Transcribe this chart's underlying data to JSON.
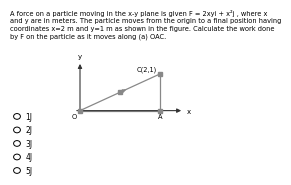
{
  "title_text": "A force on a particle moving in the x-y plane is given F = 2xyi + x²j , where x\nand y are in meters. The particle moves from the origin to a final position having\ncoordinates x=2 m and y=1 m as shown in the figure. Calculate the work done\nby F on the particle as it moves along (a) OAC.",
  "options": [
    "1J",
    "2J",
    "3J",
    "4J",
    "5J"
  ],
  "graph": {
    "O": [
      0,
      0
    ],
    "A": [
      2,
      0
    ],
    "C": [
      2,
      1
    ]
  },
  "label_O": "O",
  "label_A": "A",
  "label_C": "C(2,1)",
  "label_x": "x",
  "label_y": "y",
  "bg_color": "#ffffff",
  "text_color": "#000000",
  "axis_color": "#333333",
  "path_color": "#888888",
  "title_fontsize": 4.8,
  "option_fontsize": 5.5,
  "axis_xlim": [
    -0.3,
    2.8
  ],
  "axis_ylim": [
    -0.25,
    1.5
  ]
}
